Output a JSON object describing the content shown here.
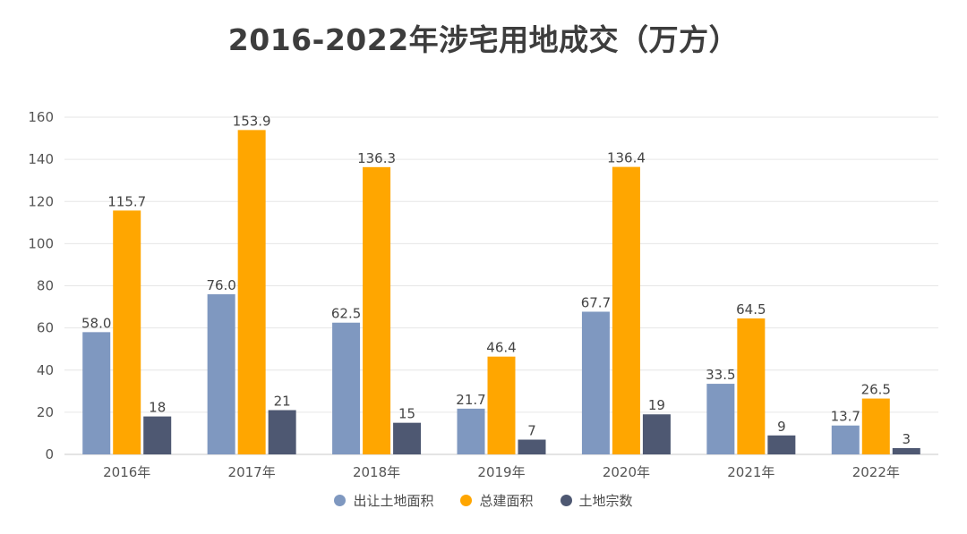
{
  "chart_data": {
    "type": "bar",
    "title": "2016-2022年涉宅用地成交（万方）",
    "categories": [
      "2016年",
      "2017年",
      "2018年",
      "2019年",
      "2020年",
      "2021年",
      "2022年"
    ],
    "series": [
      {
        "name": "出让土地面积",
        "color": "#7f98c0",
        "values": [
          58.0,
          76.0,
          62.5,
          21.7,
          67.7,
          33.5,
          13.7
        ],
        "labels": [
          "58.0",
          "76.0",
          "62.5",
          "21.7",
          "67.7",
          "33.5",
          "13.7"
        ]
      },
      {
        "name": "总建面积",
        "color": "#ffa600",
        "values": [
          115.7,
          153.9,
          136.3,
          46.4,
          136.4,
          64.5,
          26.5
        ],
        "labels": [
          "115.7",
          "153.9",
          "136.3",
          "46.4",
          "136.4",
          "64.5",
          "26.5"
        ]
      },
      {
        "name": "土地宗数",
        "color": "#4e5872",
        "values": [
          18,
          21,
          15,
          7,
          19,
          9,
          3
        ],
        "labels": [
          "18",
          "21",
          "15",
          "7",
          "19",
          "9",
          "3"
        ]
      }
    ],
    "ylim": [
      0,
      160
    ],
    "yticks": [
      0,
      20,
      40,
      60,
      80,
      100,
      120,
      140,
      160
    ],
    "grid": true,
    "legend_position": "bottom"
  }
}
